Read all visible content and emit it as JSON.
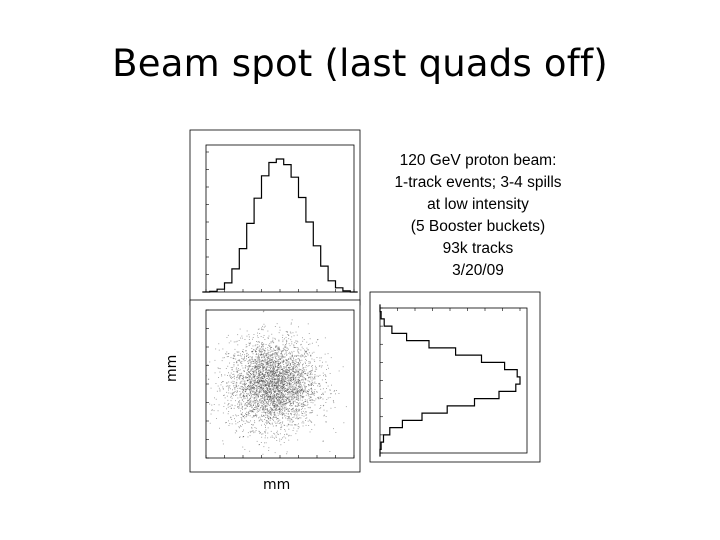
{
  "slide": {
    "title": "Beam spot (last quads off)",
    "caption_lines": [
      "120 GeV proton beam:",
      "1-track events; 3-4 spills",
      "at low intensity",
      "(5 Booster buckets)",
      "93k tracks",
      "3/20/09"
    ],
    "y_axis_label": "mm",
    "x_axis_label": "mm"
  },
  "chart_data": [
    {
      "type": "bar",
      "panel": "top-histogram",
      "x": [
        -20,
        -18,
        -16,
        -14,
        -12,
        -10,
        -8,
        -6,
        -4,
        -2,
        0,
        2,
        4,
        6,
        8,
        10,
        12,
        14,
        16,
        18,
        20
      ],
      "values": [
        0,
        10,
        40,
        130,
        330,
        620,
        980,
        1340,
        1660,
        1850,
        1900,
        1820,
        1640,
        1350,
        1000,
        660,
        370,
        160,
        60,
        15,
        0
      ],
      "xlim": [
        -20,
        20
      ],
      "ylim": [
        0,
        2100
      ]
    },
    {
      "type": "scatter",
      "panel": "beam-profile-2d",
      "xlim": [
        -20,
        20
      ],
      "ylim": [
        -20,
        20
      ],
      "center": [
        -2,
        0
      ],
      "sigma": [
        6,
        6
      ]
    },
    {
      "type": "bar",
      "panel": "side-histogram",
      "orientation": "horizontal",
      "y": [
        20,
        18,
        16,
        14,
        12,
        10,
        8,
        6,
        4,
        2,
        0,
        -2,
        -4,
        -6,
        -8,
        -10,
        -12,
        -14,
        -16,
        -18,
        -20
      ],
      "values": [
        0,
        15,
        60,
        170,
        380,
        700,
        1080,
        1450,
        1780,
        1960,
        2000,
        1940,
        1700,
        1350,
        960,
        600,
        320,
        140,
        50,
        15,
        0
      ],
      "xlim": [
        0,
        2100
      ],
      "ylim": [
        -20,
        20
      ]
    }
  ]
}
